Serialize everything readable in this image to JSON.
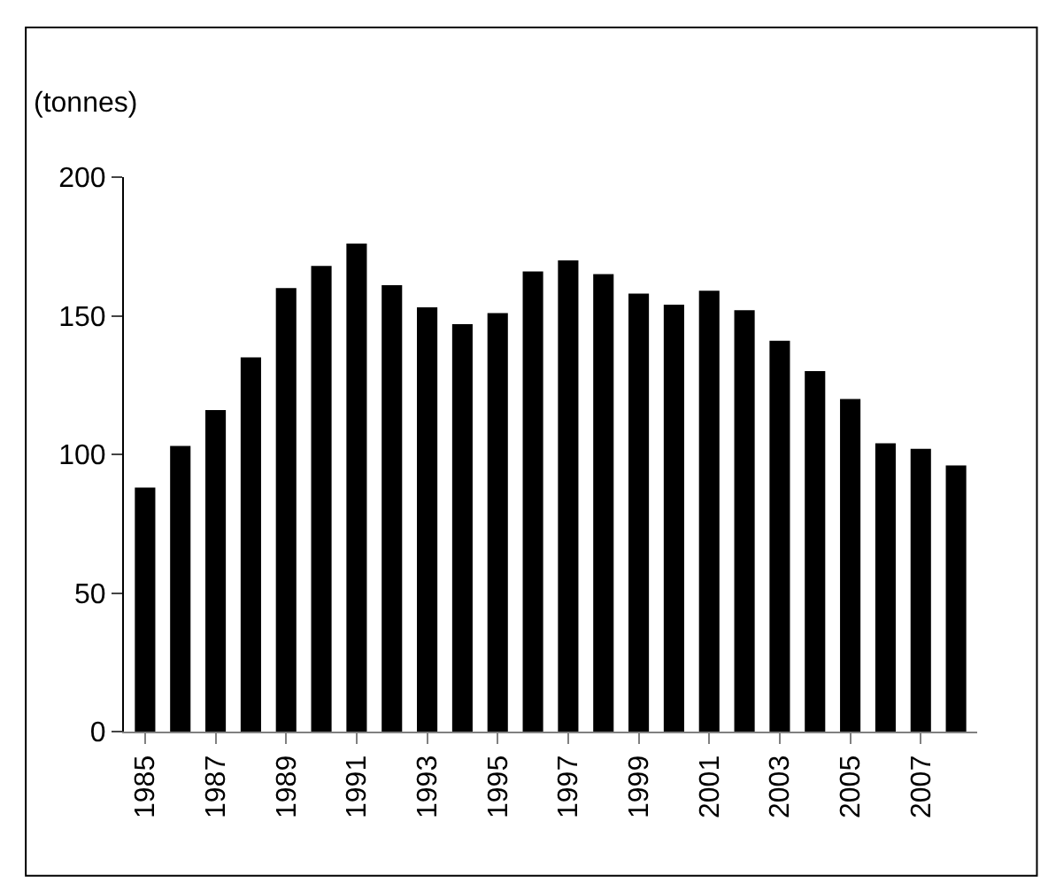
{
  "chart_data": {
    "type": "bar",
    "ylabel": "(tonnes)",
    "categories": [
      "1985",
      null,
      "1987",
      null,
      "1989",
      null,
      "1991",
      null,
      "1993",
      null,
      "1995",
      null,
      "1997",
      null,
      "1999",
      null,
      "2001",
      null,
      "2003",
      null,
      "2005",
      null,
      "2007",
      null
    ],
    "values": [
      88,
      103,
      116,
      135,
      160,
      168,
      176,
      161,
      153,
      147,
      151,
      166,
      170,
      165,
      158,
      154,
      159,
      152,
      141,
      130,
      120,
      104,
      102,
      96
    ],
    "color": "#000000",
    "ylim": [
      0,
      200
    ],
    "yticks": [
      0,
      50,
      100,
      150,
      200
    ],
    "legend": false
  }
}
